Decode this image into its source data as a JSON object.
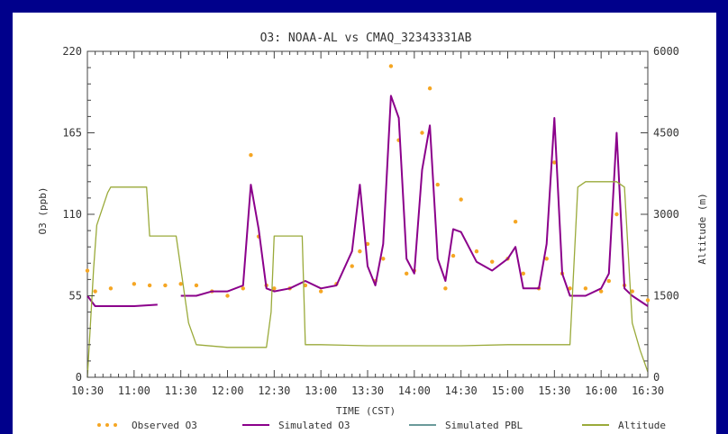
{
  "chart_data": {
    "type": "line",
    "title": "O3: NOAA-AL vs CMAQ_32343331AB",
    "xlabel": "TIME (CST)",
    "ylabel": "O3 (ppb)",
    "y2label": "Altitude (m)",
    "xlim": [
      "10:30",
      "16:30"
    ],
    "xticks": [
      "10:30",
      "11:00",
      "11:30",
      "12:00",
      "12:30",
      "13:00",
      "13:30",
      "14:00",
      "14:30",
      "15:00",
      "15:30",
      "16:00",
      "16:30"
    ],
    "ylim": [
      0,
      220
    ],
    "yticks": [
      0,
      55,
      110,
      165,
      220
    ],
    "y2lim": [
      0,
      6000
    ],
    "y2ticks": [
      0,
      1500,
      3000,
      4500,
      6000
    ],
    "grid": false,
    "legend_position": "bottom",
    "colors": {
      "observed": "#f5a623",
      "simulated": "#8b008b",
      "pbl": "#6a9a9a",
      "altitude": "#9aaa3a",
      "frame": "#00008b"
    },
    "legend": [
      {
        "key": "observed",
        "label": "Observed O3",
        "style": "dots"
      },
      {
        "key": "simulated",
        "label": "Simulated O3",
        "style": "line"
      },
      {
        "key": "pbl",
        "label": "Simulated PBL",
        "style": "line"
      },
      {
        "key": "altitude",
        "label": "Altitude",
        "style": "line"
      }
    ],
    "series": [
      {
        "key": "observed",
        "name": "Observed O3",
        "axis": "left",
        "x": [
          "10:30",
          "10:35",
          "10:45",
          "11:00",
          "11:10",
          "11:20",
          "11:30",
          "11:40",
          "11:50",
          "12:00",
          "12:10",
          "12:15",
          "12:20",
          "12:25",
          "12:30",
          "12:40",
          "12:50",
          "13:00",
          "13:10",
          "13:20",
          "13:25",
          "13:30",
          "13:35",
          "13:40",
          "13:45",
          "13:50",
          "13:55",
          "14:00",
          "14:05",
          "14:10",
          "14:15",
          "14:20",
          "14:25",
          "14:30",
          "14:40",
          "14:50",
          "15:00",
          "15:05",
          "15:10",
          "15:20",
          "15:25",
          "15:30",
          "15:35",
          "15:40",
          "15:50",
          "16:00",
          "16:05",
          "16:10",
          "16:15",
          "16:20",
          "16:30"
        ],
        "y": [
          72,
          58,
          60,
          63,
          62,
          62,
          63,
          62,
          58,
          55,
          60,
          150,
          95,
          62,
          60,
          60,
          62,
          58,
          63,
          75,
          85,
          90,
          65,
          80,
          210,
          160,
          70,
          72,
          165,
          195,
          130,
          60,
          82,
          120,
          85,
          78,
          80,
          105,
          70,
          60,
          80,
          145,
          70,
          60,
          60,
          58,
          65,
          110,
          62,
          58,
          52
        ]
      },
      {
        "key": "simulated",
        "name": "Simulated O3",
        "axis": "left",
        "x": [
          "10:30",
          "10:35",
          "10:45",
          "11:00",
          "11:15",
          "11:25",
          "11:30",
          "11:40",
          "11:50",
          "12:00",
          "12:10",
          "12:15",
          "12:20",
          "12:25",
          "12:30",
          "12:40",
          "12:50",
          "13:00",
          "13:10",
          "13:20",
          "13:25",
          "13:30",
          "13:35",
          "13:40",
          "13:45",
          "13:50",
          "13:55",
          "14:00",
          "14:05",
          "14:10",
          "14:15",
          "14:20",
          "14:25",
          "14:30",
          "14:40",
          "14:50",
          "15:00",
          "15:05",
          "15:10",
          "15:20",
          "15:25",
          "15:30",
          "15:35",
          "15:40",
          "15:50",
          "16:00",
          "16:05",
          "16:10",
          "16:15",
          "16:20",
          "16:30"
        ],
        "y": [
          55,
          48,
          48,
          48,
          49,
          null,
          55,
          55,
          58,
          58,
          62,
          130,
          100,
          60,
          58,
          60,
          65,
          60,
          62,
          85,
          130,
          75,
          62,
          90,
          190,
          175,
          80,
          70,
          140,
          170,
          80,
          65,
          100,
          98,
          78,
          72,
          80,
          88,
          60,
          60,
          90,
          175,
          70,
          55,
          55,
          60,
          70,
          165,
          60,
          55,
          48
        ]
      },
      {
        "key": "altitude",
        "name": "Altitude",
        "axis": "right",
        "x": [
          "10:30",
          "10:34",
          "10:36",
          "10:43",
          "10:45",
          "11:00",
          "11:05",
          "11:08",
          "11:10",
          "11:22",
          "11:25",
          "11:27",
          "11:30",
          "11:35",
          "11:40",
          "12:00",
          "12:10",
          "12:20",
          "12:25",
          "12:28",
          "12:30",
          "12:40",
          "12:45",
          "12:48",
          "12:50",
          "13:00",
          "13:30",
          "14:00",
          "14:30",
          "15:00",
          "15:30",
          "15:35",
          "15:40",
          "15:45",
          "15:50",
          "16:00",
          "16:05",
          "16:10",
          "16:15",
          "16:20",
          "16:25",
          "16:30"
        ],
        "y": [
          0,
          2000,
          2800,
          3400,
          3500,
          3500,
          3500,
          3500,
          2600,
          2600,
          2600,
          2600,
          2000,
          1000,
          600,
          550,
          550,
          550,
          550,
          1200,
          2600,
          2600,
          2600,
          2600,
          600,
          600,
          580,
          580,
          580,
          600,
          600,
          600,
          600,
          3500,
          3600,
          3600,
          3600,
          3600,
          3500,
          1000,
          500,
          100
        ]
      },
      {
        "key": "pbl",
        "name": "Simulated PBL",
        "axis": "right",
        "x": [],
        "y": []
      }
    ]
  }
}
